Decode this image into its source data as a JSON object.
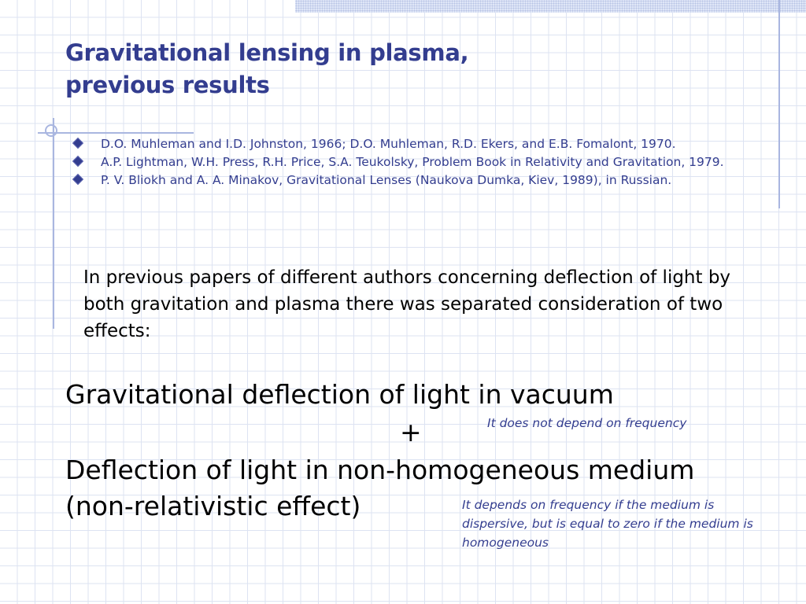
{
  "slide": {
    "title_line1": "Gravitational lensing in plasma,",
    "title_line2": "previous results",
    "references": [
      {
        "text": "D.O. Muhleman and I.D. Johnston, 1966; D.O. Muhleman, R.D. Ekers, and E.B. Fomalont, 1970."
      },
      {
        "text": "A.P. Lightman, W.H. Press, R.H. Price, S.A. Teukolsky, Problem Book in Relativity and Gravitation, 1979."
      },
      {
        "text": "P. V. Bliokh and A. A. Minakov, Gravitational Lenses (Naukova Dumka, Kiev, 1989), in Russian."
      }
    ],
    "intro": "In previous papers of different authors concerning deflection of light by both gravitation and plasma there was separated consideration of two effects:",
    "effect1": "Gravitational deflection of light in vacuum",
    "plus": "+",
    "effect2_line1": "Deflection of light in non-homogeneous medium",
    "effect2_line2": "(non-relativistic effect)",
    "note1": "It does not depend on frequency",
    "note2": "It depends on frequency if the medium is dispersive, but is equal to zero if the medium is homogeneous"
  },
  "colors": {
    "accent": "#333d8f",
    "grid": "#dde3f2",
    "decor": "#a9b6e0"
  },
  "icons": {
    "bullet": "diamond-bullet-icon"
  }
}
